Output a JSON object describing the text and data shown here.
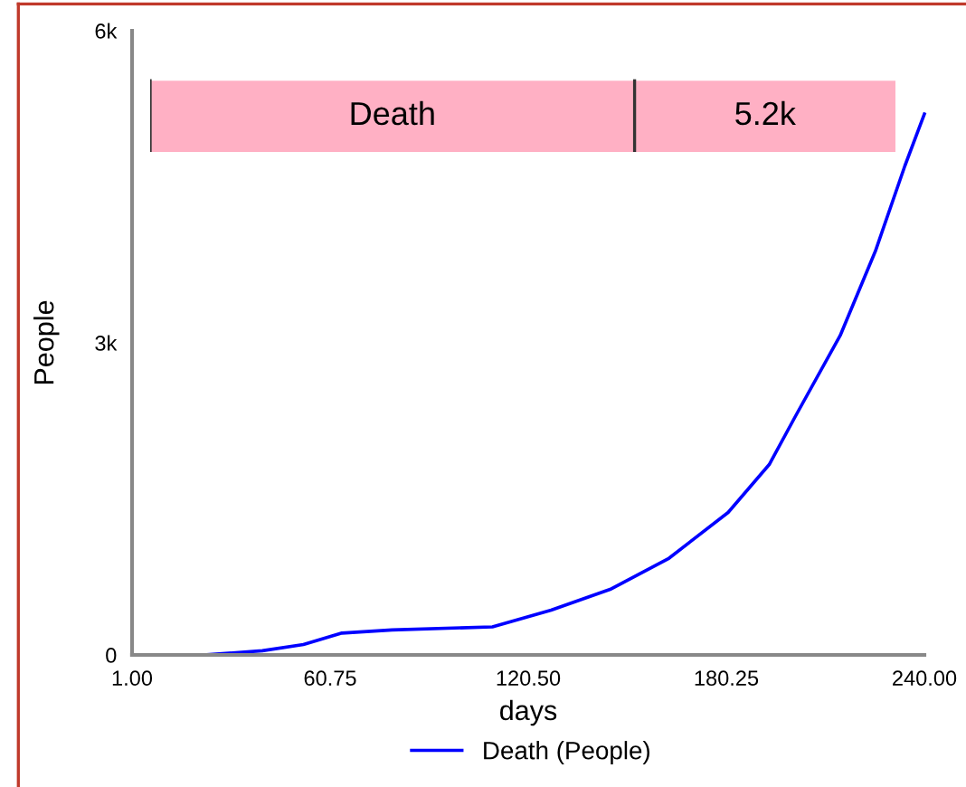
{
  "chart_data": {
    "type": "line",
    "xlabel": "days",
    "ylabel": "People",
    "x": [
      1,
      22.5,
      40.3,
      52.7,
      64.3,
      79.4,
      109.7,
      127.4,
      145.2,
      163.0,
      180.8,
      193.2,
      201.2,
      214.6,
      225.2,
      234.1,
      240
    ],
    "series": [
      {
        "name": "Death (People)",
        "color": "#0000ff",
        "values": [
          0,
          0,
          40,
          100,
          210,
          240,
          270,
          430,
          630,
          930,
          1370,
          1830,
          2300,
          3070,
          3880,
          4700,
          5200
        ]
      }
    ],
    "xlim": [
      1,
      240
    ],
    "xticks": [
      {
        "value": 1,
        "label": "1.00"
      },
      {
        "value": 60.75,
        "label": "60.75"
      },
      {
        "value": 120.5,
        "label": "120.50"
      },
      {
        "value": 180.25,
        "label": "180.25"
      },
      {
        "value": 240,
        "label": "240.00"
      }
    ],
    "ylim": [
      0,
      6000
    ],
    "yticks": [
      0,
      {
        "value": 3000,
        "label": "3k"
      },
      {
        "value": 6000,
        "label": "6k"
      }
    ],
    "annotations": [
      "Death",
      "5.2k"
    ],
    "grid": false,
    "legend": "bottom",
    "marker": "none",
    "line_style": "solid"
  }
}
